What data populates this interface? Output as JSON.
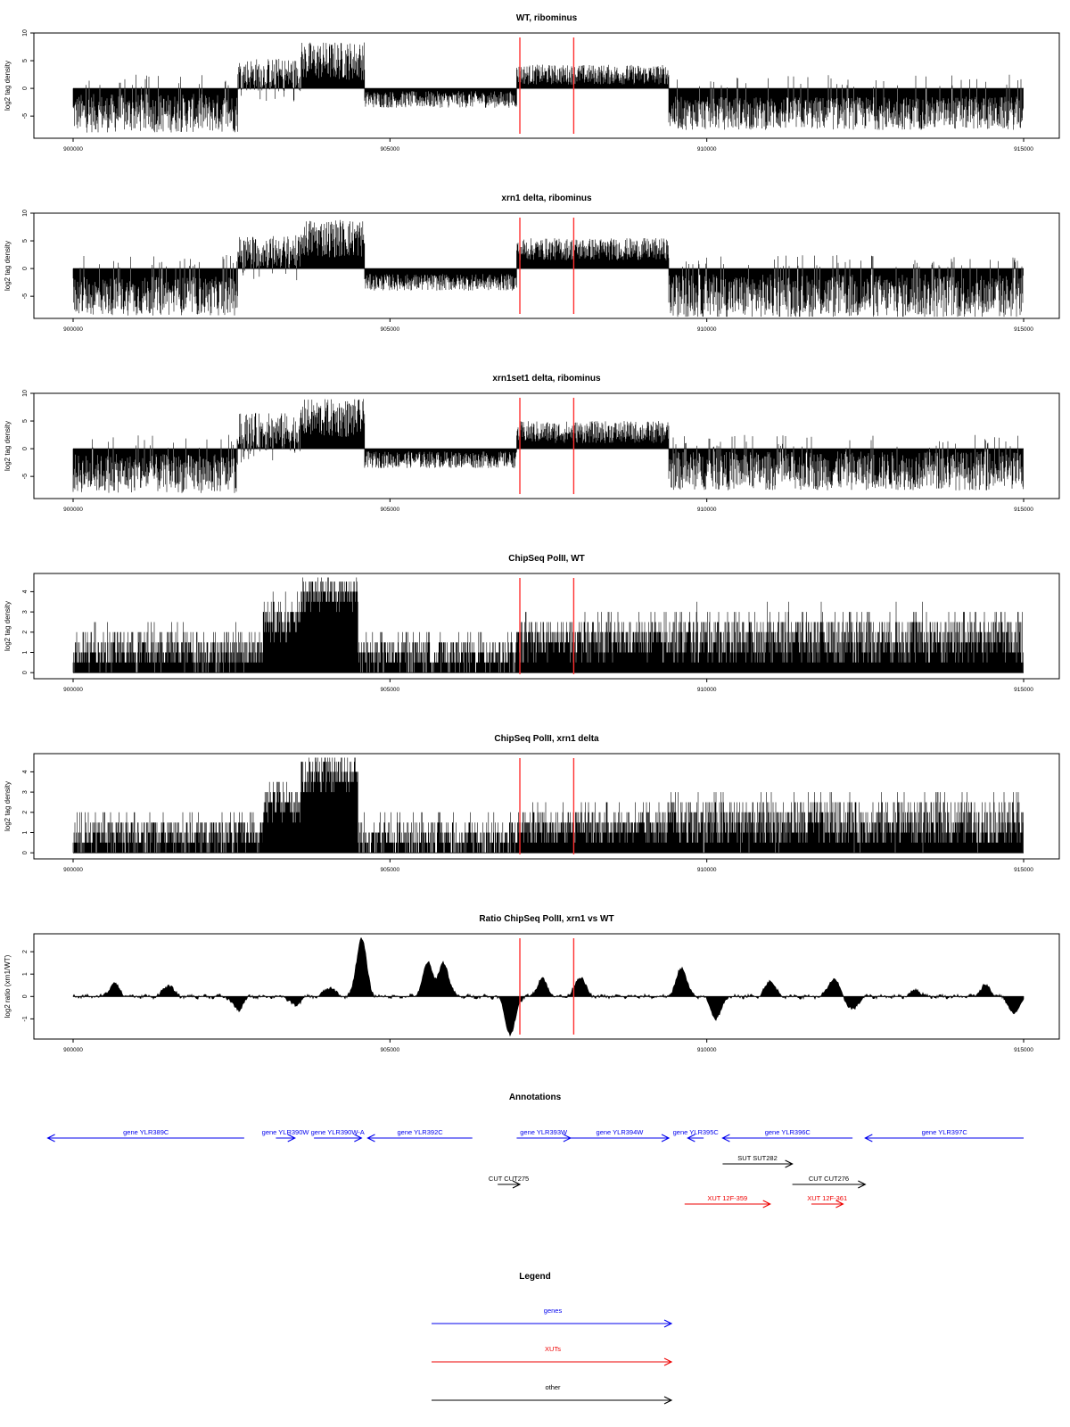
{
  "panels": [
    {
      "title": "WT, ribominus",
      "ylabel": "log2 tag density",
      "yticks": [
        "-5",
        "0",
        "5",
        "10"
      ],
      "xticks": [
        "900000",
        "905000",
        "910000",
        "915000"
      ],
      "chart_data": {
        "type": "bar",
        "xlim": [
          900000,
          915000
        ],
        "ylim": [
          -9,
          10
        ],
        "segments": [
          {
            "start": 900000,
            "end": 902600,
            "mean": -4.5,
            "amp": 3.5,
            "sign": "both"
          },
          {
            "start": 902600,
            "end": 903600,
            "mean": 2.5,
            "amp": 3,
            "sign": "both"
          },
          {
            "start": 903600,
            "end": 904600,
            "mean": 5,
            "amp": 3.5,
            "sign": "pos"
          },
          {
            "start": 904600,
            "end": 907000,
            "mean": -2,
            "amp": 1.5,
            "sign": "neg"
          },
          {
            "start": 907000,
            "end": 909400,
            "mean": 2.5,
            "amp": 1.8,
            "sign": "pos"
          },
          {
            "start": 909400,
            "end": 915000,
            "mean": -4.5,
            "amp": 3,
            "sign": "both"
          }
        ],
        "markers_x": [
          907050,
          907900
        ]
      }
    },
    {
      "title": "xrn1 delta, ribominus",
      "ylabel": "log2 tag density",
      "yticks": [
        "-5",
        "0",
        "5",
        "10"
      ],
      "xticks": [
        "900000",
        "905000",
        "910000",
        "915000"
      ],
      "chart_data": {
        "type": "bar",
        "xlim": [
          900000,
          915000
        ],
        "ylim": [
          -9,
          10
        ],
        "segments": [
          {
            "start": 900000,
            "end": 902600,
            "mean": -5,
            "amp": 3.5,
            "sign": "both"
          },
          {
            "start": 902600,
            "end": 903600,
            "mean": 3,
            "amp": 3,
            "sign": "both"
          },
          {
            "start": 903600,
            "end": 904600,
            "mean": 5.5,
            "amp": 3.5,
            "sign": "pos"
          },
          {
            "start": 904600,
            "end": 907000,
            "mean": -2.5,
            "amp": 1.5,
            "sign": "neg"
          },
          {
            "start": 907000,
            "end": 909400,
            "mean": 3.5,
            "amp": 2,
            "sign": "pos"
          },
          {
            "start": 909400,
            "end": 915000,
            "mean": -5,
            "amp": 4,
            "sign": "both"
          }
        ],
        "markers_x": [
          907050,
          907900
        ]
      }
    },
    {
      "title": "xrn1set1 delta, ribominus",
      "ylabel": "log2 tag density",
      "yticks": [
        "-5",
        "0",
        "5",
        "10"
      ],
      "xticks": [
        "900000",
        "905000",
        "910000",
        "915000"
      ],
      "chart_data": {
        "type": "bar",
        "xlim": [
          900000,
          915000
        ],
        "ylim": [
          -9,
          10
        ],
        "segments": [
          {
            "start": 900000,
            "end": 902600,
            "mean": -4.5,
            "amp": 3.5,
            "sign": "both"
          },
          {
            "start": 902600,
            "end": 903600,
            "mean": 3,
            "amp": 3.5,
            "sign": "both"
          },
          {
            "start": 903600,
            "end": 904600,
            "mean": 5.5,
            "amp": 3.5,
            "sign": "pos"
          },
          {
            "start": 904600,
            "end": 907000,
            "mean": -2,
            "amp": 1.5,
            "sign": "neg"
          },
          {
            "start": 907000,
            "end": 909400,
            "mean": 3,
            "amp": 2,
            "sign": "pos"
          },
          {
            "start": 909400,
            "end": 915000,
            "mean": -4,
            "amp": 3.5,
            "sign": "both"
          }
        ],
        "markers_x": [
          907050,
          907900
        ]
      }
    },
    {
      "title": "ChipSeq PolII, WT",
      "ylabel": "log2 tag density",
      "yticks": [
        "0",
        "1",
        "2",
        "3",
        "4"
      ],
      "xticks": [
        "900000",
        "905000",
        "910000",
        "915000"
      ],
      "chart_data": {
        "type": "bar",
        "xlim": [
          900000,
          915000
        ],
        "ylim": [
          -0.3,
          4.9
        ],
        "segments": [
          {
            "start": 900000,
            "end": 903000,
            "mean": 1,
            "amp": 0.9,
            "sign": "pos"
          },
          {
            "start": 903000,
            "end": 903600,
            "mean": 2.5,
            "amp": 0.9,
            "sign": "pos"
          },
          {
            "start": 903600,
            "end": 904500,
            "mean": 3.8,
            "amp": 0.8,
            "sign": "pos"
          },
          {
            "start": 904500,
            "end": 907000,
            "mean": 0.8,
            "amp": 0.8,
            "sign": "pos"
          },
          {
            "start": 907000,
            "end": 909400,
            "mean": 1.5,
            "amp": 0.9,
            "sign": "pos"
          },
          {
            "start": 909400,
            "end": 915000,
            "mean": 1.6,
            "amp": 1.2,
            "sign": "pos"
          }
        ],
        "markers_x": [
          907050,
          907900
        ]
      }
    },
    {
      "title": "ChipSeq PolII, xrn1 delta",
      "ylabel": "log2 tag density",
      "yticks": [
        "0",
        "1",
        "2",
        "3",
        "4"
      ],
      "xticks": [
        "900000",
        "905000",
        "910000",
        "915000"
      ],
      "chart_data": {
        "type": "bar",
        "xlim": [
          900000,
          915000
        ],
        "ylim": [
          -0.3,
          4.9
        ],
        "segments": [
          {
            "start": 900000,
            "end": 903000,
            "mean": 0.8,
            "amp": 0.9,
            "sign": "pos"
          },
          {
            "start": 903000,
            "end": 903600,
            "mean": 2.3,
            "amp": 0.8,
            "sign": "pos"
          },
          {
            "start": 903600,
            "end": 904500,
            "mean": 3.8,
            "amp": 0.8,
            "sign": "pos"
          },
          {
            "start": 904500,
            "end": 907000,
            "mean": 0.6,
            "amp": 0.8,
            "sign": "pos"
          },
          {
            "start": 907000,
            "end": 909400,
            "mean": 1.2,
            "amp": 0.8,
            "sign": "pos"
          },
          {
            "start": 909400,
            "end": 915000,
            "mean": 1.4,
            "amp": 1.2,
            "sign": "pos"
          }
        ],
        "markers_x": [
          907050,
          907900
        ]
      }
    },
    {
      "title": "Ratio ChipSeq PolII, xrn1 vs WT",
      "ylabel": "log2 ratio (xrn1/WT)",
      "yticks": [
        "-1",
        "0",
        "1",
        "2"
      ],
      "xticks": [
        "900000",
        "905000",
        "910000",
        "915000"
      ],
      "chart_data": {
        "type": "area",
        "xlim": [
          900000,
          915000
        ],
        "ylim": [
          -1.9,
          2.8
        ],
        "baseline": 0,
        "peaks": [
          {
            "x": 900650,
            "y": 0.6
          },
          {
            "x": 901500,
            "y": 0.5
          },
          {
            "x": 902600,
            "y": -0.6
          },
          {
            "x": 903500,
            "y": -0.4
          },
          {
            "x": 904050,
            "y": 0.4
          },
          {
            "x": 904550,
            "y": 2.6
          },
          {
            "x": 905600,
            "y": 1.5
          },
          {
            "x": 905850,
            "y": 1.5
          },
          {
            "x": 906900,
            "y": -1.7
          },
          {
            "x": 907400,
            "y": 0.8
          },
          {
            "x": 908000,
            "y": 0.9
          },
          {
            "x": 909600,
            "y": 1.3
          },
          {
            "x": 910150,
            "y": -1.0
          },
          {
            "x": 911000,
            "y": 0.7
          },
          {
            "x": 912000,
            "y": 0.8
          },
          {
            "x": 912300,
            "y": -0.6
          },
          {
            "x": 913300,
            "y": 0.3
          },
          {
            "x": 914400,
            "y": 0.5
          },
          {
            "x": 914850,
            "y": -0.8
          }
        ],
        "markers_x": [
          907050,
          907900
        ]
      }
    }
  ],
  "annotations": {
    "title": "Annotations",
    "xlim": [
      900000,
      915000
    ],
    "features": [
      {
        "label": "gene YLR389C",
        "start": 899600,
        "end": 902700,
        "dir": "left",
        "row": 0,
        "color": "#0000ee"
      },
      {
        "label": "gene YLR390W",
        "start": 903200,
        "end": 903500,
        "dir": "right",
        "row": 0,
        "color": "#0000ee"
      },
      {
        "label": "gene YLR390W-A",
        "start": 903800,
        "end": 904550,
        "dir": "right",
        "row": 0,
        "color": "#0000ee"
      },
      {
        "label": "gene YLR392C",
        "start": 904650,
        "end": 906300,
        "dir": "left",
        "row": 0,
        "color": "#0000ee"
      },
      {
        "label": "gene YLR393W",
        "start": 907000,
        "end": 907850,
        "dir": "right",
        "row": 0,
        "color": "#0000ee"
      },
      {
        "label": "gene YLR394W",
        "start": 907850,
        "end": 909400,
        "dir": "right",
        "row": 0,
        "color": "#0000ee"
      },
      {
        "label": "gene YLR395C",
        "start": 909700,
        "end": 909950,
        "dir": "left",
        "row": 0,
        "color": "#0000ee"
      },
      {
        "label": "gene YLR396C",
        "start": 910250,
        "end": 912300,
        "dir": "left",
        "row": 0,
        "color": "#0000ee"
      },
      {
        "label": "gene YLR397C",
        "start": 912500,
        "end": 915000,
        "dir": "left",
        "row": 0,
        "color": "#0000ee"
      },
      {
        "label": "SUT SUT282",
        "start": 910250,
        "end": 911350,
        "dir": "right",
        "row": 1,
        "color": "#000000"
      },
      {
        "label": "CUT CUT275",
        "start": 906700,
        "end": 907050,
        "dir": "right",
        "row": 2,
        "color": "#000000"
      },
      {
        "label": "CUT CUT276",
        "start": 911350,
        "end": 912500,
        "dir": "right",
        "row": 2,
        "color": "#000000"
      },
      {
        "label": "XUT 12F-359",
        "start": 909650,
        "end": 911000,
        "dir": "right",
        "row": 3,
        "color": "#ee0000"
      },
      {
        "label": "XUT 12F-361",
        "start": 911650,
        "end": 912150,
        "dir": "right",
        "row": 3,
        "color": "#ee0000"
      }
    ]
  },
  "legend": {
    "title": "Legend",
    "items": [
      {
        "label": "genes",
        "color": "#0000ee"
      },
      {
        "label": "XUTs",
        "color": "#ee0000"
      },
      {
        "label": "other",
        "color": "#000000"
      }
    ]
  }
}
